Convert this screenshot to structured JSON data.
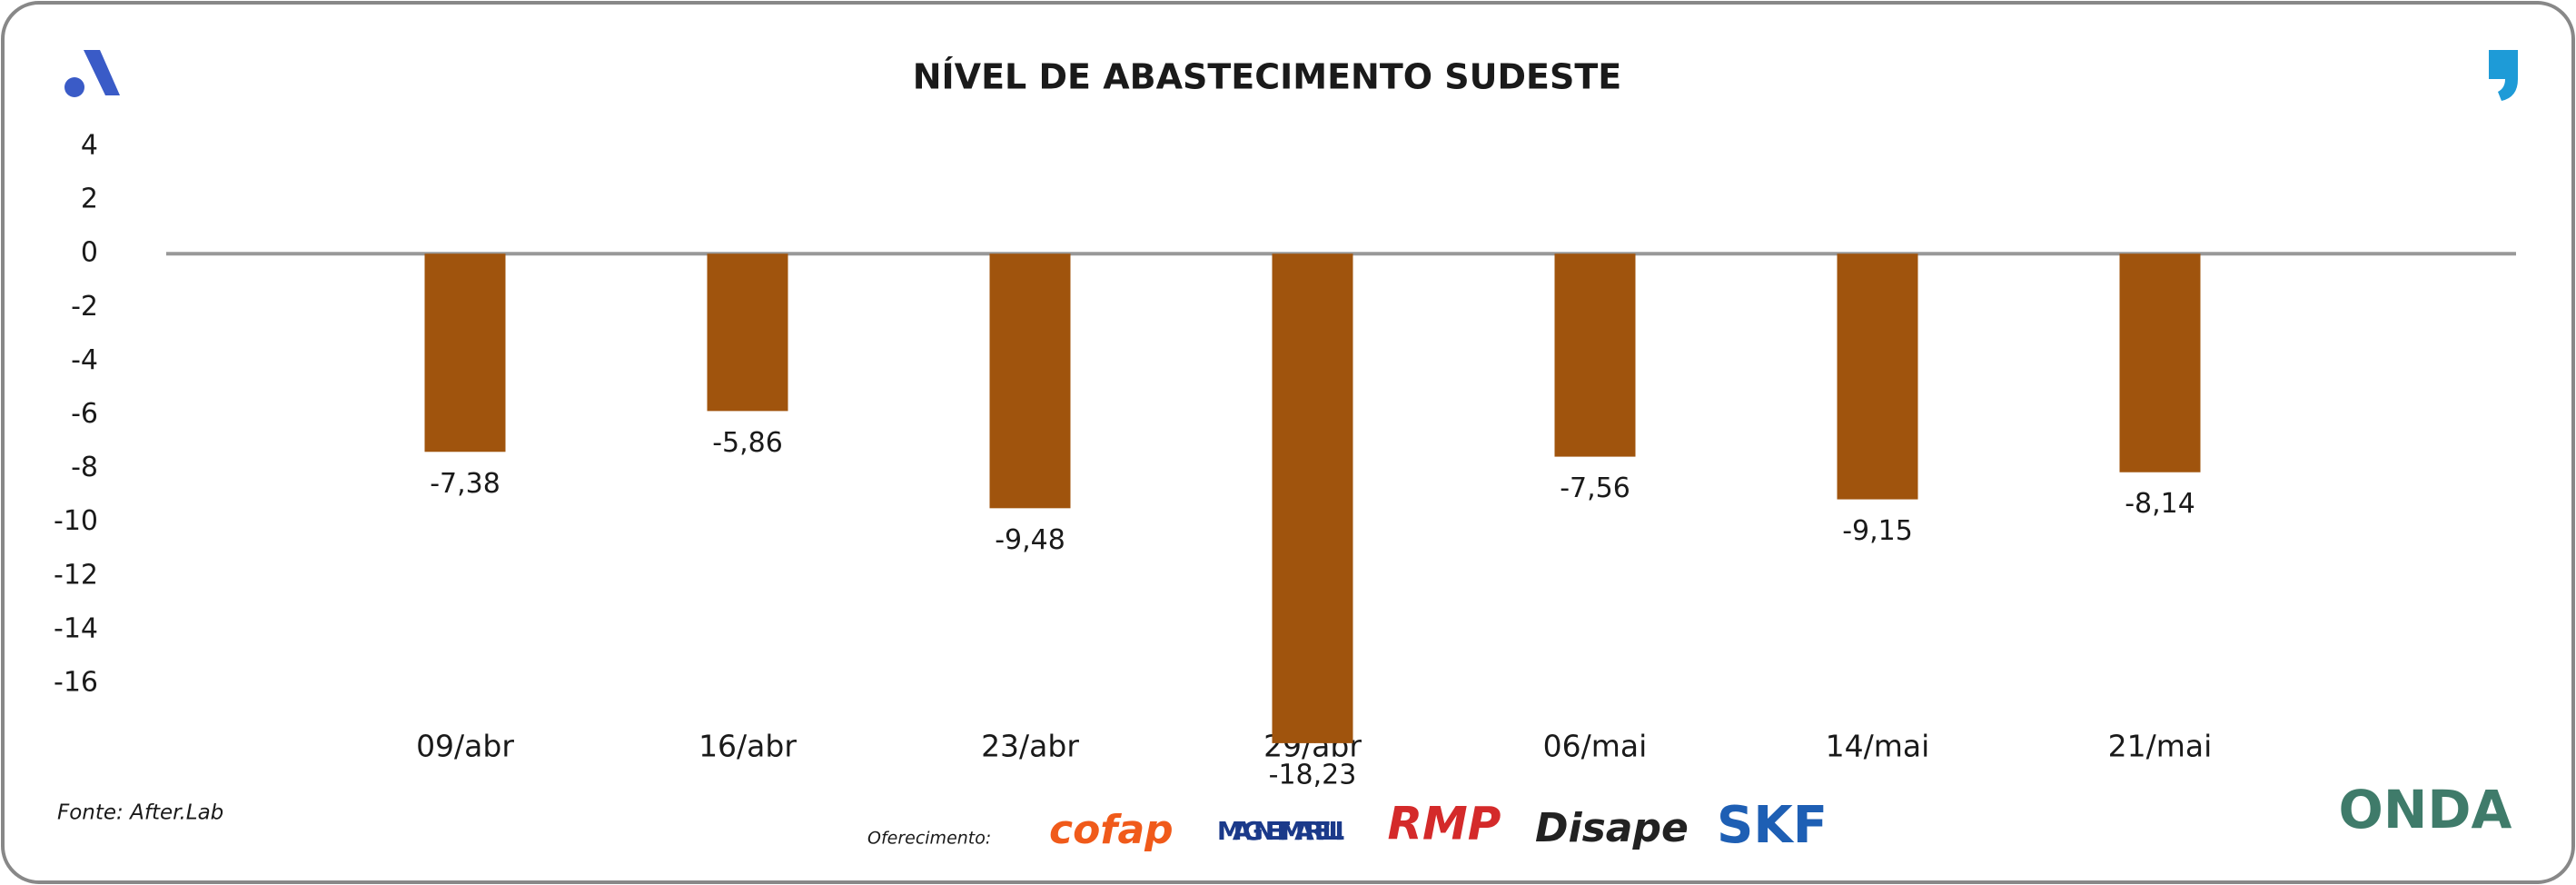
{
  "chart_data": {
    "type": "bar",
    "title": "NÍVEL DE ABASTECIMENTO SUDESTE",
    "categories": [
      "09/abr",
      "16/abr",
      "23/abr",
      "29/abr",
      "06/mai",
      "14/mai",
      "21/mai"
    ],
    "values": [
      -7.38,
      -5.86,
      -9.48,
      -18.23,
      -7.56,
      -9.15,
      -8.14
    ],
    "value_labels": [
      "-7,38",
      "-5,86",
      "-9,48",
      "-18,23",
      "-7,56",
      "-9,15",
      "-8,14"
    ],
    "color": "#a0540d",
    "ylim": [
      -16,
      4
    ],
    "yticks": [
      4,
      2,
      0,
      -2,
      -4,
      -6,
      -8,
      -10,
      -12,
      -14,
      -16
    ],
    "source": "Fonte: After.Lab"
  },
  "footer": {
    "sponsor_label": "Oferecimento:",
    "sponsors": [
      "cofap",
      "MAGNETI MARELLI",
      "RMP",
      "Disape",
      "SKF"
    ],
    "brand": "ONDA"
  }
}
